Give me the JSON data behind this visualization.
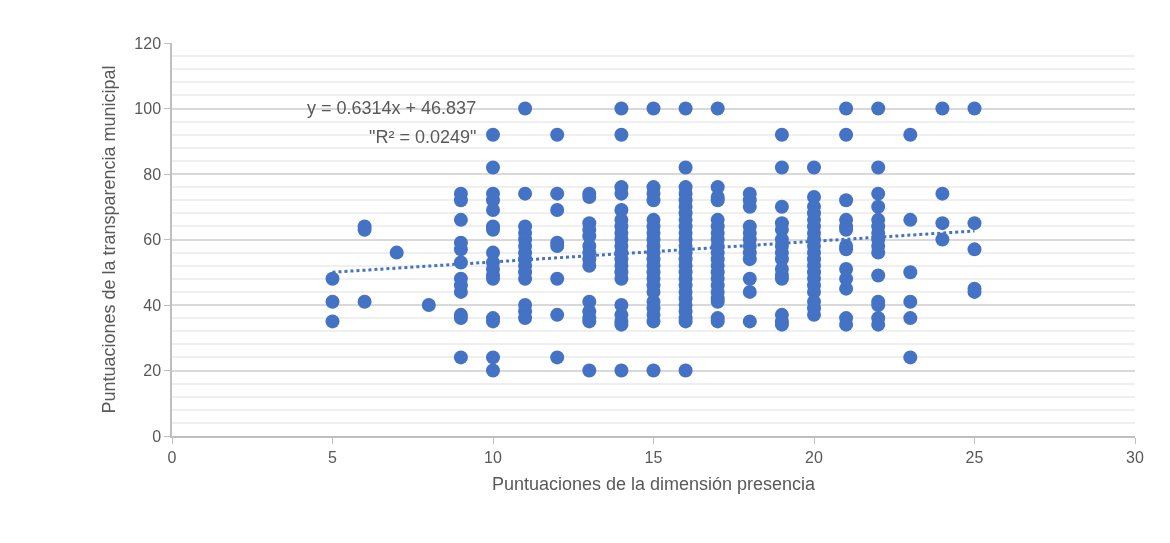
{
  "chart_data": {
    "type": "scatter",
    "xlabel": "Puntuaciones de la dimensión presencia",
    "ylabel": "Puntuaciones de la transparencia municipal",
    "annotations": [
      "y = 0.6314x + 46.837",
      "\"R² = 0.0249\""
    ],
    "xlim": [
      0,
      30
    ],
    "xticks": [
      0,
      5,
      10,
      15,
      20,
      25,
      30
    ],
    "ylim": [
      0,
      120
    ],
    "yticks": [
      0,
      20,
      40,
      60,
      80,
      100,
      120
    ],
    "grid": "y",
    "marker": "circle",
    "series": [
      {
        "color": "#4472c4",
        "x": [
          5,
          5,
          5,
          6,
          6,
          6,
          7,
          8,
          9,
          9,
          9,
          9,
          9,
          9,
          9,
          9,
          9,
          9,
          9,
          9,
          10,
          10,
          10,
          10,
          10,
          10,
          10,
          10,
          10,
          10,
          10,
          10,
          10,
          10,
          10,
          10,
          11,
          11,
          11,
          11,
          11,
          11,
          11,
          11,
          11,
          11,
          11,
          11,
          11,
          11,
          12,
          12,
          12,
          12,
          12,
          12,
          12,
          12,
          13,
          13,
          13,
          13,
          13,
          13,
          13,
          13,
          13,
          13,
          13,
          13,
          13,
          13,
          14,
          14,
          14,
          14,
          14,
          14,
          14,
          14,
          14,
          14,
          14,
          14,
          14,
          14,
          14,
          14,
          14,
          14,
          14,
          14,
          15,
          15,
          15,
          15,
          15,
          15,
          15,
          15,
          15,
          15,
          15,
          15,
          15,
          15,
          15,
          15,
          15,
          15,
          15,
          15,
          15,
          16,
          16,
          16,
          16,
          16,
          16,
          16,
          16,
          16,
          16,
          16,
          16,
          16,
          16,
          16,
          16,
          16,
          16,
          16,
          16,
          16,
          16,
          16,
          16,
          16,
          17,
          17,
          17,
          17,
          17,
          17,
          17,
          17,
          17,
          17,
          17,
          17,
          17,
          17,
          17,
          17,
          17,
          17,
          17,
          17,
          18,
          18,
          18,
          18,
          18,
          18,
          18,
          18,
          18,
          18,
          18,
          18,
          19,
          19,
          19,
          19,
          19,
          19,
          19,
          19,
          19,
          19,
          19,
          19,
          19,
          19,
          19,
          20,
          20,
          20,
          20,
          20,
          20,
          20,
          20,
          20,
          20,
          20,
          20,
          20,
          20,
          20,
          20,
          20,
          20,
          20,
          21,
          21,
          21,
          21,
          21,
          21,
          21,
          21,
          21,
          21,
          21,
          21,
          21,
          22,
          22,
          22,
          22,
          22,
          22,
          22,
          22,
          22,
          22,
          22,
          22,
          22,
          22,
          22,
          23,
          23,
          23,
          23,
          23,
          23,
          24,
          24,
          24,
          24,
          25,
          25,
          25,
          25,
          25
        ],
        "values": [
          48,
          41,
          35,
          64,
          63,
          41,
          56,
          40,
          74,
          72,
          66,
          59,
          57,
          53,
          48,
          46,
          44,
          37,
          36,
          24,
          92,
          82,
          74,
          72,
          69,
          64,
          63,
          56,
          53,
          51,
          49,
          48,
          36,
          35,
          24,
          20,
          100,
          74,
          64,
          62,
          60,
          58,
          56,
          54,
          52,
          50,
          48,
          40,
          38,
          36,
          92,
          74,
          69,
          59,
          58,
          48,
          37,
          24,
          74,
          73,
          65,
          63,
          61,
          58,
          56,
          54,
          52,
          41,
          38,
          36,
          35,
          20,
          100,
          92,
          76,
          74,
          69,
          66,
          64,
          62,
          60,
          58,
          56,
          54,
          52,
          50,
          48,
          40,
          37,
          35,
          34,
          20,
          100,
          76,
          74,
          72,
          66,
          64,
          62,
          60,
          58,
          56,
          54,
          52,
          50,
          48,
          46,
          44,
          41,
          39,
          37,
          35,
          20,
          100,
          82,
          76,
          74,
          72,
          70,
          68,
          66,
          64,
          62,
          60,
          58,
          56,
          54,
          52,
          50,
          48,
          46,
          44,
          42,
          40,
          38,
          36,
          35,
          20,
          100,
          76,
          73,
          72,
          66,
          64,
          62,
          60,
          58,
          56,
          54,
          52,
          50,
          48,
          46,
          44,
          42,
          41,
          36,
          35,
          74,
          72,
          70,
          64,
          62,
          60,
          58,
          56,
          54,
          48,
          44,
          35,
          92,
          82,
          70,
          65,
          63,
          60,
          58,
          56,
          54,
          51,
          49,
          48,
          37,
          35,
          34,
          82,
          73,
          70,
          68,
          66,
          64,
          62,
          60,
          58,
          56,
          54,
          52,
          50,
          48,
          46,
          44,
          41,
          39,
          37,
          100,
          92,
          72,
          66,
          64,
          63,
          58,
          57,
          51,
          48,
          45,
          36,
          34,
          100,
          82,
          74,
          70,
          66,
          64,
          62,
          60,
          58,
          56,
          49,
          41,
          40,
          36,
          34,
          92,
          66,
          50,
          41,
          36,
          24,
          100,
          74,
          65,
          60,
          100,
          65,
          57,
          45,
          44
        ]
      },
      {
        "type": "line",
        "color": "#4472c4",
        "line_style": "dotted",
        "marker": "none",
        "x": [
          5,
          25
        ],
        "values": [
          50,
          62.6
        ]
      }
    ]
  }
}
